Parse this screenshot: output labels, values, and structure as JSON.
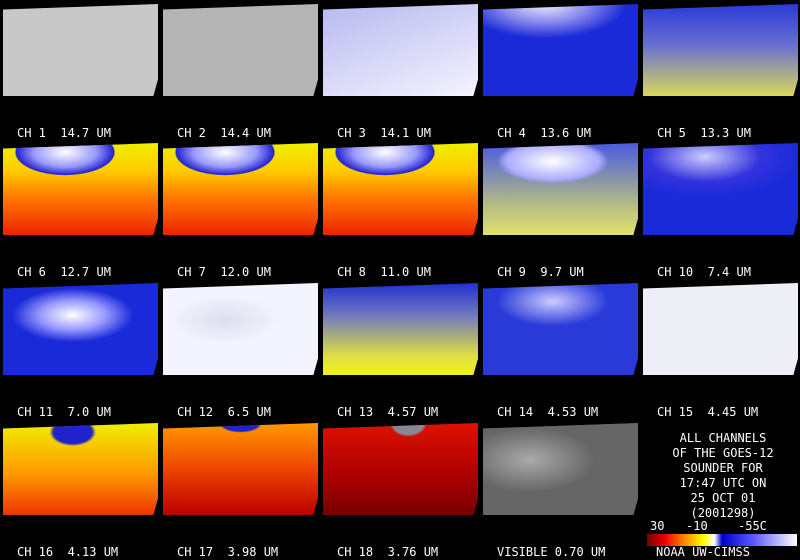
{
  "panels": [
    {
      "label": "CH 1  14.7 UM"
    },
    {
      "label": "CH 2  14.4 UM"
    },
    {
      "label": "CH 3  14.1 UM"
    },
    {
      "label": "CH 4  13.6 UM"
    },
    {
      "label": "CH 5  13.3 UM"
    },
    {
      "label": "CH 6  12.7 UM"
    },
    {
      "label": "CH 7  12.0 UM"
    },
    {
      "label": "CH 8  11.0 UM"
    },
    {
      "label": "CH 9  9.7 UM"
    },
    {
      "label": "CH 10  7.4 UM"
    },
    {
      "label": "CH 11  7.0 UM"
    },
    {
      "label": "CH 12  6.5 UM"
    },
    {
      "label": "CH 13  4.57 UM"
    },
    {
      "label": "CH 14  4.53 UM"
    },
    {
      "label": "CH 15  4.45 UM"
    },
    {
      "label": "CH 16  4.13 UM"
    },
    {
      "label": "CH 17  3.98 UM"
    },
    {
      "label": "CH 18  3.76 UM"
    },
    {
      "label": "VISIBLE 0.70 UM"
    }
  ],
  "info": {
    "lines": [
      "ALL CHANNELS",
      "OF THE GOES-12",
      "SOUNDER FOR",
      "17:47 UTC ON",
      "25 OCT 01",
      "(2001298)"
    ]
  },
  "colorbar": {
    "labels": [
      "30",
      "-10",
      "-55C"
    ],
    "credit": "NOAA UW-CIMSS"
  }
}
